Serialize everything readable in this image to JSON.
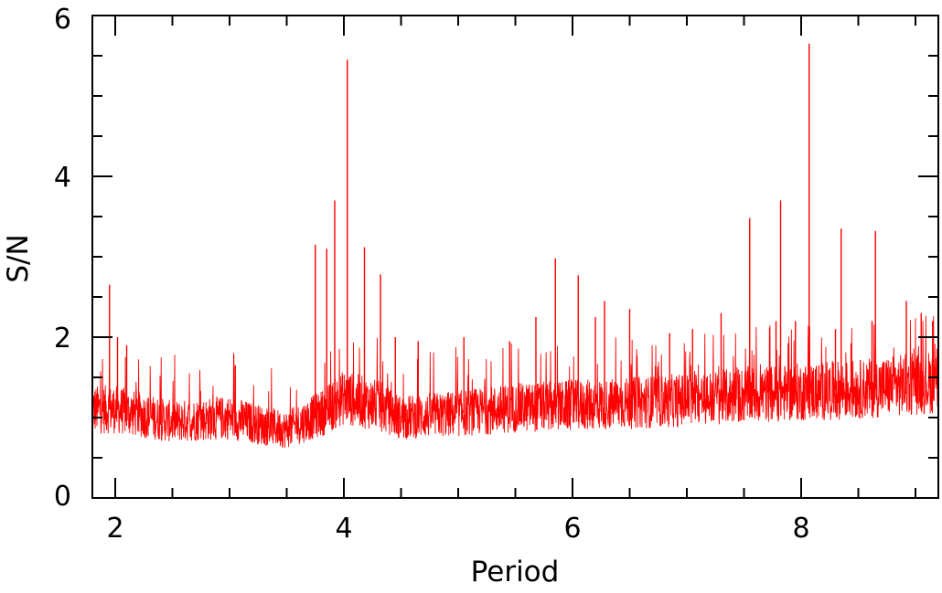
{
  "chart_data": {
    "type": "line",
    "xlabel": "Period",
    "ylabel": "S/N",
    "xlim": [
      1.8,
      9.2
    ],
    "ylim": [
      0,
      6
    ],
    "x_ticks": [
      2,
      4,
      6,
      8
    ],
    "x_tick_labels": [
      "2",
      "4",
      "6",
      "8"
    ],
    "x_minor_step": 0.5,
    "y_ticks": [
      0,
      2,
      4,
      6
    ],
    "y_tick_labels": [
      "0",
      "2",
      "4",
      "6"
    ],
    "y_minor_step": 0.5,
    "grid": false,
    "line_color": "#ff0000",
    "noise_floor": {
      "x": [
        1.8,
        2.0,
        2.5,
        3.0,
        3.3,
        3.5,
        3.8,
        4.0,
        4.3,
        4.5,
        5.0,
        5.5,
        6.0,
        6.5,
        7.0,
        7.5,
        8.0,
        8.5,
        9.0,
        9.2
      ],
      "y": [
        1.1,
        1.1,
        0.95,
        1.0,
        0.9,
        0.85,
        1.05,
        1.25,
        1.15,
        1.0,
        1.05,
        1.12,
        1.15,
        1.18,
        1.22,
        1.28,
        1.32,
        1.35,
        1.42,
        1.45
      ]
    },
    "peaks": {
      "x": [
        1.95,
        2.02,
        2.1,
        3.05,
        3.75,
        3.85,
        3.92,
        4.03,
        4.18,
        4.32,
        4.45,
        4.65,
        5.05,
        5.45,
        5.68,
        5.85,
        6.05,
        6.2,
        6.28,
        6.5,
        6.85,
        7.05,
        7.3,
        7.55,
        7.78,
        7.82,
        7.95,
        8.07,
        8.3,
        8.35,
        8.62,
        8.65,
        8.92,
        9.05,
        9.15
      ],
      "y": [
        2.65,
        2.0,
        1.9,
        1.65,
        3.15,
        3.1,
        3.7,
        5.45,
        3.12,
        2.78,
        2.0,
        1.95,
        2.0,
        1.95,
        2.25,
        2.98,
        2.77,
        2.25,
        2.45,
        2.35,
        2.05,
        2.1,
        2.3,
        3.48,
        2.2,
        3.7,
        2.2,
        5.65,
        2.1,
        3.35,
        2.2,
        3.32,
        2.45,
        2.3,
        2.2
      ]
    }
  }
}
